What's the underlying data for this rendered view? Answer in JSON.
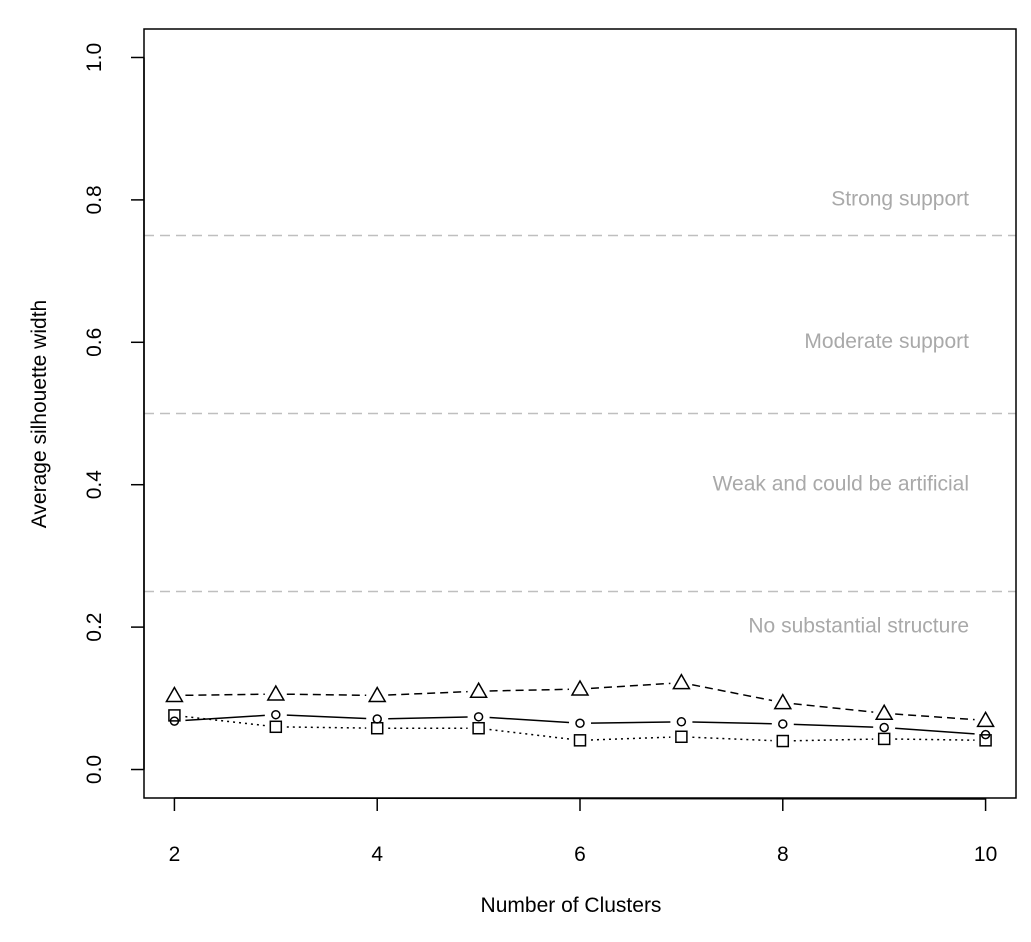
{
  "chart_data": {
    "type": "line",
    "xlabel": "Number of Clusters",
    "ylabel": "Average silhouette width",
    "xlim": [
      1.7,
      10.3
    ],
    "ylim": [
      -0.04,
      1.04
    ],
    "xticks": [
      "2",
      "4",
      "6",
      "8",
      "10"
    ],
    "yticks": [
      "0.0",
      "0.2",
      "0.4",
      "0.6",
      "0.8",
      "1.0"
    ],
    "x": [
      2,
      3,
      4,
      5,
      6,
      7,
      8,
      9,
      10
    ],
    "series": [
      {
        "style": "solid",
        "marker": "circle",
        "values": [
          0.068,
          0.077,
          0.071,
          0.074,
          0.065,
          0.067,
          0.064,
          0.059,
          0.049
        ]
      },
      {
        "style": "dashed",
        "marker": "triangle",
        "values": [
          0.104,
          0.106,
          0.104,
          0.11,
          0.113,
          0.122,
          0.094,
          0.079,
          0.069
        ]
      },
      {
        "style": "dotted",
        "marker": "square",
        "values": [
          0.076,
          0.06,
          0.058,
          0.058,
          0.041,
          0.046,
          0.04,
          0.043,
          0.041
        ]
      }
    ],
    "reference_lines": [
      0.25,
      0.5,
      0.75
    ],
    "annotations": [
      {
        "text": "Strong support",
        "y": 0.8
      },
      {
        "text": "Moderate support",
        "y": 0.6
      },
      {
        "text": "Weak and could be artificial",
        "y": 0.4
      },
      {
        "text": "No substantial structure",
        "y": 0.2
      }
    ],
    "grid": false,
    "colors": {
      "series": "#000000",
      "reference": "#bfbfbf",
      "annotation": "#a9a9a9"
    }
  }
}
